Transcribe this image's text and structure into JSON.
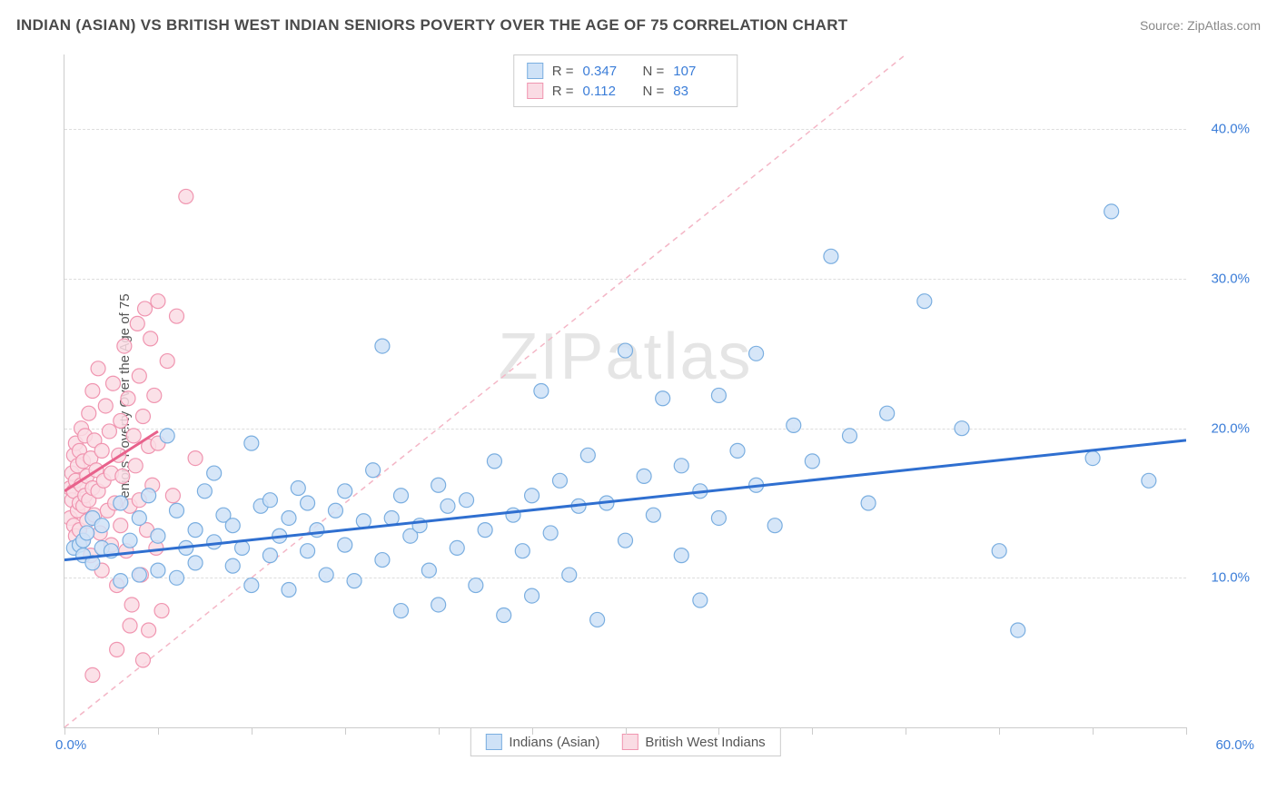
{
  "title": "INDIAN (ASIAN) VS BRITISH WEST INDIAN SENIORS POVERTY OVER THE AGE OF 75 CORRELATION CHART",
  "source": "Source: ZipAtlas.com",
  "watermark": "ZIPatlas",
  "y_axis_label": "Seniors Poverty Over the Age of 75",
  "chart": {
    "type": "scatter",
    "xlim": [
      0,
      60
    ],
    "ylim": [
      0,
      45
    ],
    "x_ticks": [
      0,
      5,
      10,
      15,
      20,
      25,
      30,
      35,
      40,
      45,
      50,
      55,
      60
    ],
    "y_gridlines": [
      10,
      20,
      30,
      40
    ],
    "y_tick_labels": [
      "10.0%",
      "20.0%",
      "30.0%",
      "40.0%"
    ],
    "x_origin_label": "0.0%",
    "x_max_label": "60.0%",
    "background_color": "#ffffff",
    "grid_color": "#dddddd",
    "axis_color": "#cccccc",
    "tick_label_color": "#3b7dd8",
    "diagonal_line": {
      "color": "#f4b6c6",
      "dash": "6,5",
      "width": 1.5,
      "x1": 0,
      "y1": 0,
      "x2": 45,
      "y2": 45
    }
  },
  "series": [
    {
      "name": "Indians (Asian)",
      "marker_fill": "#cfe2f7",
      "marker_stroke": "#7aaee0",
      "marker_radius": 8,
      "trend_line": {
        "color": "#2f6fd0",
        "width": 3,
        "x1": 0,
        "y1": 11.2,
        "x2": 60,
        "y2": 19.2
      },
      "stats": {
        "R": "0.347",
        "N": "107"
      },
      "points": [
        [
          0.5,
          12
        ],
        [
          0.8,
          12.2
        ],
        [
          1,
          11.5
        ],
        [
          1,
          12.5
        ],
        [
          1.2,
          13
        ],
        [
          1.5,
          11
        ],
        [
          1.5,
          14
        ],
        [
          2,
          12
        ],
        [
          2,
          13.5
        ],
        [
          2.5,
          11.8
        ],
        [
          3,
          9.8
        ],
        [
          3,
          15
        ],
        [
          3.5,
          12.5
        ],
        [
          4,
          10.2
        ],
        [
          4,
          14
        ],
        [
          4.5,
          15.5
        ],
        [
          5,
          12.8
        ],
        [
          5,
          10.5
        ],
        [
          5.5,
          19.5
        ],
        [
          6,
          14.5
        ],
        [
          6,
          10
        ],
        [
          6.5,
          12
        ],
        [
          7,
          13.2
        ],
        [
          7,
          11
        ],
        [
          7.5,
          15.8
        ],
        [
          8,
          12.4
        ],
        [
          8,
          17
        ],
        [
          8.5,
          14.2
        ],
        [
          9,
          10.8
        ],
        [
          9,
          13.5
        ],
        [
          9.5,
          12
        ],
        [
          10,
          19
        ],
        [
          10,
          9.5
        ],
        [
          10.5,
          14.8
        ],
        [
          11,
          15.2
        ],
        [
          11,
          11.5
        ],
        [
          11.5,
          12.8
        ],
        [
          12,
          9.2
        ],
        [
          12,
          14
        ],
        [
          12.5,
          16
        ],
        [
          13,
          11.8
        ],
        [
          13,
          15
        ],
        [
          13.5,
          13.2
        ],
        [
          14,
          10.2
        ],
        [
          14.5,
          14.5
        ],
        [
          15,
          15.8
        ],
        [
          15,
          12.2
        ],
        [
          15.5,
          9.8
        ],
        [
          16,
          13.8
        ],
        [
          16.5,
          17.2
        ],
        [
          17,
          25.5
        ],
        [
          17,
          11.2
        ],
        [
          17.5,
          14
        ],
        [
          18,
          15.5
        ],
        [
          18,
          7.8
        ],
        [
          18.5,
          12.8
        ],
        [
          19,
          13.5
        ],
        [
          19.5,
          10.5
        ],
        [
          20,
          16.2
        ],
        [
          20,
          8.2
        ],
        [
          20.5,
          14.8
        ],
        [
          21,
          12
        ],
        [
          21.5,
          15.2
        ],
        [
          22,
          9.5
        ],
        [
          22.5,
          13.2
        ],
        [
          23,
          17.8
        ],
        [
          23.5,
          7.5
        ],
        [
          24,
          14.2
        ],
        [
          24.5,
          11.8
        ],
        [
          25,
          15.5
        ],
        [
          25,
          8.8
        ],
        [
          25.5,
          22.5
        ],
        [
          26,
          13
        ],
        [
          26.5,
          16.5
        ],
        [
          27,
          10.2
        ],
        [
          27.5,
          14.8
        ],
        [
          28,
          18.2
        ],
        [
          28.5,
          7.2
        ],
        [
          29,
          15
        ],
        [
          30,
          25.2
        ],
        [
          30,
          12.5
        ],
        [
          31,
          16.8
        ],
        [
          31.5,
          14.2
        ],
        [
          32,
          22
        ],
        [
          33,
          11.5
        ],
        [
          33,
          17.5
        ],
        [
          34,
          15.8
        ],
        [
          34,
          8.5
        ],
        [
          35,
          22.2
        ],
        [
          35,
          14
        ],
        [
          36,
          18.5
        ],
        [
          37,
          25
        ],
        [
          37,
          16.2
        ],
        [
          38,
          13.5
        ],
        [
          39,
          20.2
        ],
        [
          40,
          17.8
        ],
        [
          41,
          31.5
        ],
        [
          42,
          19.5
        ],
        [
          43,
          15
        ],
        [
          44,
          21
        ],
        [
          46,
          28.5
        ],
        [
          48,
          20
        ],
        [
          50,
          11.8
        ],
        [
          51,
          6.5
        ],
        [
          55,
          18
        ],
        [
          56,
          34.5
        ],
        [
          58,
          16.5
        ]
      ]
    },
    {
      "name": "British West Indians",
      "marker_fill": "#fadce4",
      "marker_stroke": "#f095b0",
      "marker_radius": 8,
      "trend_line": {
        "color": "#e8628c",
        "width": 3,
        "x1": 0,
        "y1": 15.8,
        "x2": 5,
        "y2": 19.8
      },
      "stats": {
        "R": "0.112",
        "N": "83"
      },
      "points": [
        [
          0.3,
          14
        ],
        [
          0.3,
          16
        ],
        [
          0.4,
          15.2
        ],
        [
          0.4,
          17
        ],
        [
          0.5,
          13.5
        ],
        [
          0.5,
          18.2
        ],
        [
          0.5,
          15.8
        ],
        [
          0.6,
          12.8
        ],
        [
          0.6,
          16.5
        ],
        [
          0.6,
          19
        ],
        [
          0.7,
          14.5
        ],
        [
          0.7,
          17.5
        ],
        [
          0.8,
          15
        ],
        [
          0.8,
          13.2
        ],
        [
          0.8,
          18.5
        ],
        [
          0.9,
          16.2
        ],
        [
          0.9,
          20
        ],
        [
          1,
          14.8
        ],
        [
          1,
          17.8
        ],
        [
          1,
          12.5
        ],
        [
          1.1,
          15.5
        ],
        [
          1.1,
          19.5
        ],
        [
          1.2,
          16.8
        ],
        [
          1.2,
          13.8
        ],
        [
          1.3,
          21
        ],
        [
          1.3,
          15.2
        ],
        [
          1.4,
          18
        ],
        [
          1.4,
          11.5
        ],
        [
          1.5,
          16
        ],
        [
          1.5,
          22.5
        ],
        [
          1.6,
          14.2
        ],
        [
          1.6,
          19.2
        ],
        [
          1.7,
          17.2
        ],
        [
          1.8,
          15.8
        ],
        [
          1.8,
          24
        ],
        [
          1.9,
          13
        ],
        [
          2,
          18.5
        ],
        [
          2,
          10.5
        ],
        [
          2.1,
          16.5
        ],
        [
          2.2,
          21.5
        ],
        [
          2.3,
          14.5
        ],
        [
          2.4,
          19.8
        ],
        [
          2.5,
          12.2
        ],
        [
          2.5,
          17
        ],
        [
          2.6,
          23
        ],
        [
          2.7,
          15
        ],
        [
          2.8,
          9.5
        ],
        [
          2.9,
          18.2
        ],
        [
          3,
          20.5
        ],
        [
          3,
          13.5
        ],
        [
          3.1,
          16.8
        ],
        [
          3.2,
          25.5
        ],
        [
          3.3,
          11.8
        ],
        [
          3.4,
          22
        ],
        [
          3.5,
          14.8
        ],
        [
          3.6,
          8.2
        ],
        [
          3.7,
          19.5
        ],
        [
          3.8,
          17.5
        ],
        [
          3.9,
          27
        ],
        [
          4,
          15.2
        ],
        [
          4,
          23.5
        ],
        [
          4.1,
          10.2
        ],
        [
          4.2,
          20.8
        ],
        [
          4.3,
          28
        ],
        [
          4.4,
          13.2
        ],
        [
          4.5,
          18.8
        ],
        [
          4.5,
          6.5
        ],
        [
          4.6,
          26
        ],
        [
          4.7,
          16.2
        ],
        [
          4.8,
          22.2
        ],
        [
          4.9,
          12
        ],
        [
          5,
          28.5
        ],
        [
          5,
          19
        ],
        [
          5.2,
          7.8
        ],
        [
          5.5,
          24.5
        ],
        [
          5.8,
          15.5
        ],
        [
          6,
          27.5
        ],
        [
          6.5,
          35.5
        ],
        [
          7,
          18
        ],
        [
          1.5,
          3.5
        ],
        [
          2.8,
          5.2
        ],
        [
          3.5,
          6.8
        ],
        [
          4.2,
          4.5
        ]
      ]
    }
  ],
  "stats_labels": {
    "R": "R =",
    "N": "N ="
  },
  "bottom_legend": {
    "items": [
      {
        "label": "Indians (Asian)",
        "fill": "#cfe2f7",
        "stroke": "#7aaee0"
      },
      {
        "label": "British West Indians",
        "fill": "#fadce4",
        "stroke": "#f095b0"
      }
    ]
  }
}
